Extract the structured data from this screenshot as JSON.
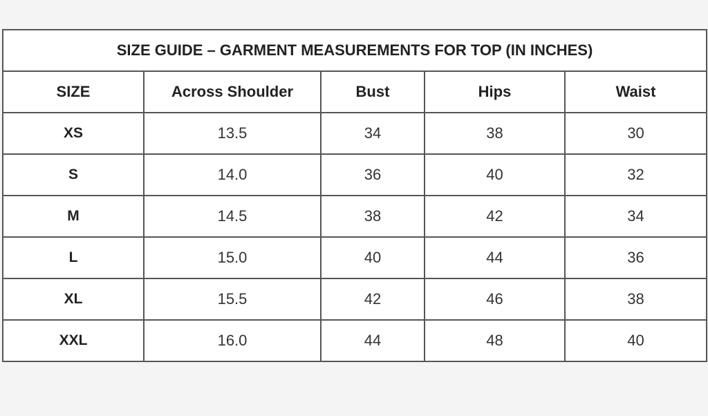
{
  "title": "SIZE GUIDE – GARMENT MEASUREMENTS FOR TOP (IN INCHES)",
  "columns": [
    "SIZE",
    "Across Shoulder",
    "Bust",
    "Hips",
    "Waist"
  ],
  "rows": [
    [
      "XS",
      "13.5",
      "34",
      "38",
      "30"
    ],
    [
      "S",
      "14.0",
      "36",
      "40",
      "32"
    ],
    [
      "M",
      "14.5",
      "38",
      "42",
      "34"
    ],
    [
      "L",
      "15.0",
      "40",
      "44",
      "36"
    ],
    [
      "XL",
      "15.5",
      "42",
      "46",
      "38"
    ],
    [
      "XXL",
      "16.0",
      "44",
      "48",
      "40"
    ]
  ]
}
